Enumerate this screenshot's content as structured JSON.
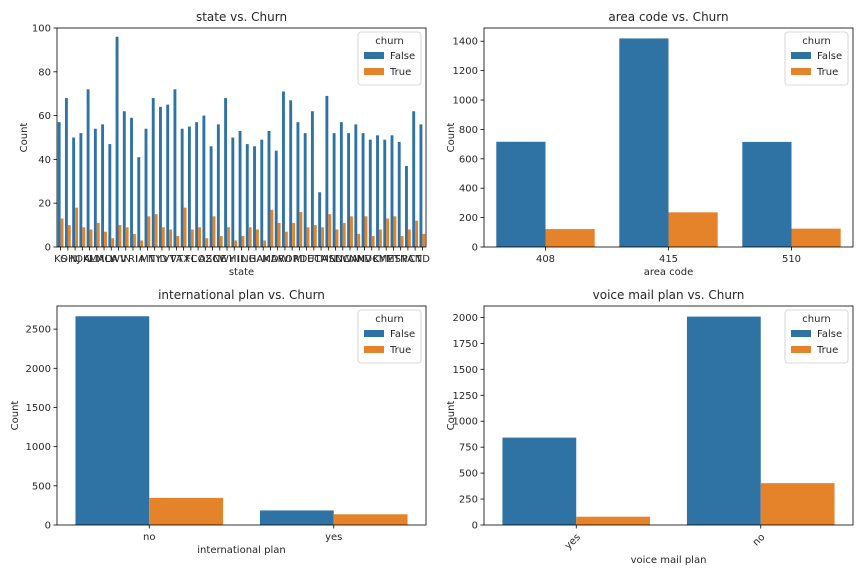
{
  "figure": {
    "legend_title": "churn",
    "background": "#ffffff"
  },
  "colors": {
    "False": "#2f73a5",
    "True": "#e5832a"
  },
  "chart_data": [
    {
      "type": "bar",
      "title": "state vs. Churn",
      "xlabel": "state",
      "ylabel": "Count",
      "ylim": [
        0,
        100
      ],
      "yticks": [
        0,
        20,
        40,
        60,
        80,
        100
      ],
      "categories": [
        "KS",
        "OH",
        "NJ",
        "OK",
        "AL",
        "MA",
        "MO",
        "LA",
        "WV",
        "IN",
        "RI",
        "IA",
        "MT",
        "NY",
        "ID",
        "VT",
        "VA",
        "TX",
        "FL",
        "CO",
        "AZ",
        "SC",
        "NE",
        "WY",
        "HI",
        "IL",
        "NH",
        "GA",
        "AK",
        "MD",
        "AR",
        "WI",
        "OR",
        "MI",
        "DE",
        "UT",
        "CA",
        "MN",
        "SD",
        "NC",
        "WA",
        "NM",
        "NV",
        "DC",
        "KY",
        "ME",
        "MS",
        "TN",
        "PA",
        "CT",
        "ND"
      ],
      "legend_position": "upper right",
      "series": [
        {
          "name": "False",
          "values": [
            57,
            68,
            50,
            52,
            72,
            54,
            56,
            47,
            96,
            62,
            59,
            41,
            54,
            68,
            64,
            65,
            72,
            54,
            55,
            57,
            60,
            46,
            56,
            68,
            50,
            53,
            47,
            46,
            49,
            53,
            44,
            71,
            67,
            57,
            52,
            62,
            25,
            69,
            52,
            57,
            52,
            56,
            52,
            49,
            51,
            49,
            51,
            48,
            37,
            62,
            56
          ]
        },
        {
          "name": "True",
          "values": [
            13,
            10,
            18,
            9,
            8,
            11,
            7,
            4,
            10,
            9,
            6,
            3,
            14,
            15,
            9,
            8,
            5,
            18,
            8,
            9,
            4,
            14,
            5,
            9,
            3,
            5,
            9,
            8,
            3,
            17,
            11,
            7,
            11,
            16,
            9,
            10,
            9,
            15,
            8,
            11,
            14,
            6,
            14,
            5,
            8,
            13,
            14,
            5,
            8,
            12,
            6
          ]
        }
      ]
    },
    {
      "type": "bar",
      "title": "area code vs. Churn",
      "xlabel": "area code",
      "ylabel": "Count",
      "ylim": [
        0,
        1490
      ],
      "yticks": [
        0,
        200,
        400,
        600,
        800,
        1000,
        1200,
        1400
      ],
      "categories": [
        "408",
        "415",
        "510"
      ],
      "legend_position": "upper right",
      "series": [
        {
          "name": "False",
          "values": [
            716,
            1419,
            715
          ]
        },
        {
          "name": "True",
          "values": [
            122,
            236,
            125
          ]
        }
      ]
    },
    {
      "type": "bar",
      "title": "international plan vs. Churn",
      "xlabel": "international plan",
      "ylabel": "Count",
      "ylim": [
        0,
        2795
      ],
      "yticks": [
        0,
        500,
        1000,
        1500,
        2000,
        2500
      ],
      "categories": [
        "no",
        "yes"
      ],
      "legend_position": "upper right",
      "series": [
        {
          "name": "False",
          "values": [
            2664,
            186
          ]
        },
        {
          "name": "True",
          "values": [
            346,
            137
          ]
        }
      ]
    },
    {
      "type": "bar",
      "title": "voice mail plan vs. Churn",
      "xlabel": "voice mail plan",
      "ylabel": "Count",
      "ylim": [
        0,
        2110
      ],
      "yticks": [
        0,
        250,
        500,
        750,
        1000,
        1250,
        1500,
        1750,
        2000
      ],
      "categories": [
        "yes",
        "no"
      ],
      "legend_position": "upper right",
      "series": [
        {
          "name": "False",
          "values": [
            842,
            2008
          ]
        },
        {
          "name": "True",
          "values": [
            80,
            403
          ]
        }
      ]
    }
  ]
}
